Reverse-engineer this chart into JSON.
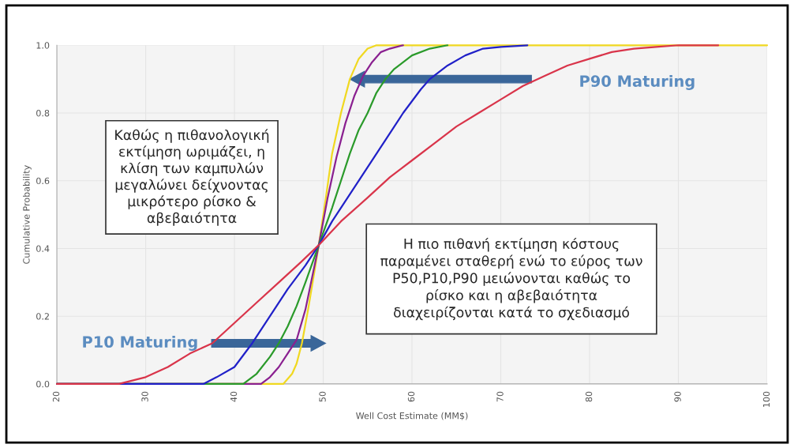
{
  "chart_data": {
    "type": "line",
    "xlabel": "Well Cost Estimate (MM$)",
    "ylabel": "Cumulative Probability",
    "xlim": [
      20,
      100
    ],
    "xticks": [
      20,
      30,
      40,
      50,
      60,
      70,
      80,
      90,
      100
    ],
    "ylim": [
      0,
      1
    ],
    "yticks": [
      {
        "value": 0,
        "label": "0.0"
      },
      {
        "value": 0.2,
        "label": "0.2"
      },
      {
        "value": 0.4,
        "label": "0.4"
      },
      {
        "value": 0.6,
        "label": "0.6"
      },
      {
        "value": 0.8,
        "label": "0.8"
      },
      {
        "value": 1,
        "label": "1.0"
      }
    ],
    "grid": true,
    "line_style": "solid",
    "series": [
      {
        "color": "#d9344a",
        "x": [
          20,
          27,
          30,
          32.5,
          35,
          37.5,
          40,
          42.5,
          45,
          47.5,
          49.5,
          52,
          55,
          57.5,
          60,
          62.5,
          65,
          67.5,
          70,
          72.5,
          75,
          77.5,
          80,
          82.5,
          85,
          87.5,
          90,
          94.5
        ],
        "values": [
          0,
          0,
          0.02,
          0.05,
          0.09,
          0.12,
          0.18,
          0.24,
          0.3,
          0.36,
          0.41,
          0.48,
          0.55,
          0.61,
          0.66,
          0.71,
          0.76,
          0.8,
          0.84,
          0.88,
          0.91,
          0.94,
          0.96,
          0.98,
          0.99,
          0.995,
          1.0,
          1.0
        ]
      },
      {
        "color": "#2020c8",
        "x": [
          20,
          36.5,
          38,
          40,
          42,
          44,
          46,
          48,
          49.5,
          51,
          53,
          55,
          57,
          59,
          61,
          62,
          64,
          66,
          68,
          70,
          73
        ],
        "values": [
          0,
          0,
          0.02,
          0.05,
          0.12,
          0.2,
          0.28,
          0.35,
          0.41,
          0.48,
          0.56,
          0.64,
          0.72,
          0.8,
          0.87,
          0.9,
          0.94,
          0.97,
          0.99,
          0.995,
          1.0
        ]
      },
      {
        "color": "#2a9a2a",
        "x": [
          20,
          41,
          42.5,
          44,
          45,
          46,
          47,
          48,
          49.5,
          51,
          52,
          53,
          54,
          55,
          56,
          57,
          58,
          60,
          62,
          64
        ],
        "values": [
          0,
          0,
          0.03,
          0.08,
          0.12,
          0.17,
          0.23,
          0.3,
          0.41,
          0.52,
          0.6,
          0.68,
          0.75,
          0.8,
          0.86,
          0.9,
          0.93,
          0.97,
          0.99,
          1.0
        ]
      },
      {
        "color": "#8a2090",
        "x": [
          20,
          43,
          44,
          45,
          46,
          47,
          48,
          49.5,
          50.5,
          51.5,
          52.5,
          53.5,
          54.5,
          55.5,
          56.5,
          57.5,
          59
        ],
        "values": [
          0,
          0,
          0.02,
          0.05,
          0.09,
          0.13,
          0.22,
          0.41,
          0.55,
          0.67,
          0.77,
          0.85,
          0.91,
          0.95,
          0.98,
          0.99,
          1.0
        ]
      },
      {
        "color": "#f0d820",
        "x": [
          20,
          45.5,
          46.5,
          47,
          47.6,
          48.3,
          49,
          49.5,
          50.3,
          51,
          52,
          53,
          54,
          55,
          56,
          100
        ],
        "values": [
          0,
          0,
          0.03,
          0.06,
          0.12,
          0.22,
          0.33,
          0.41,
          0.55,
          0.68,
          0.8,
          0.9,
          0.96,
          0.99,
          1.0,
          1.0
        ]
      }
    ],
    "annotations": [
      "Καθώς η πιθανολογική\nεκτίμηση ωριμάζει, η\nκλίση των καμπυλών\nμεγαλώνει δείχνοντας\nμικρότερο ρίσκο &\nαβεβαιότητα",
      "Η πιο πιθανή εκτίμηση κόστους\nπαραμένει σταθερή ενώ το εύρος των\nP50,P10,P90 μειώνονται καθώς το\nρίσκο και η αβεβαιότητα\nδιαχειρίζονται κατά το σχεδιασμό",
      "P90 Maturing",
      "P10 Maturing"
    ]
  }
}
